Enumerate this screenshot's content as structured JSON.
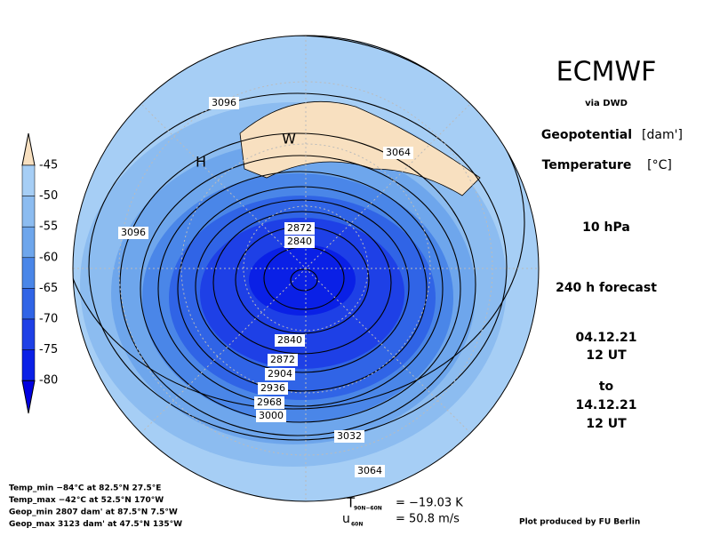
{
  "header": {
    "title": "ECMWF",
    "source": "via DWD",
    "variable1": "Geopotential",
    "unit1": "[dam']",
    "variable2": "Temperature",
    "unit2": "[°C]",
    "level": "10 hPa",
    "forecast": "240 h forecast",
    "init_date": "04.12.21",
    "init_time": "12 UT",
    "to": "to",
    "valid_date": "14.12.21",
    "valid_time": "12 UT"
  },
  "colorbar": {
    "labels": [
      -45,
      -50,
      -55,
      -60,
      -65,
      -70,
      -75,
      -80
    ]
  },
  "contour_labels": [
    "3096",
    "3064",
    "3096",
    "2872",
    "2840",
    "2840",
    "2872",
    "2904",
    "2936",
    "2968",
    "3000",
    "3032",
    "3064"
  ],
  "markers": [
    "H",
    "W"
  ],
  "stats": [
    "Temp_min −84°C at 82.5°N 27.5°E",
    "Temp_max −42°C at 52.5°N 170°W",
    "Geop_min 2807 dam' at 87.5°N 7.5°W",
    "Geop_max 3123 dam' at 47.5°N 135°W"
  ],
  "indices": {
    "t_symbol": "T",
    "t_sub": "90N−60N",
    "t_value": "= −19.03 K",
    "u_symbol": "u",
    "u_sub": "60N",
    "u_value": "= 50.8 m/s"
  },
  "credit": "Plot produced by FU Berlin"
}
